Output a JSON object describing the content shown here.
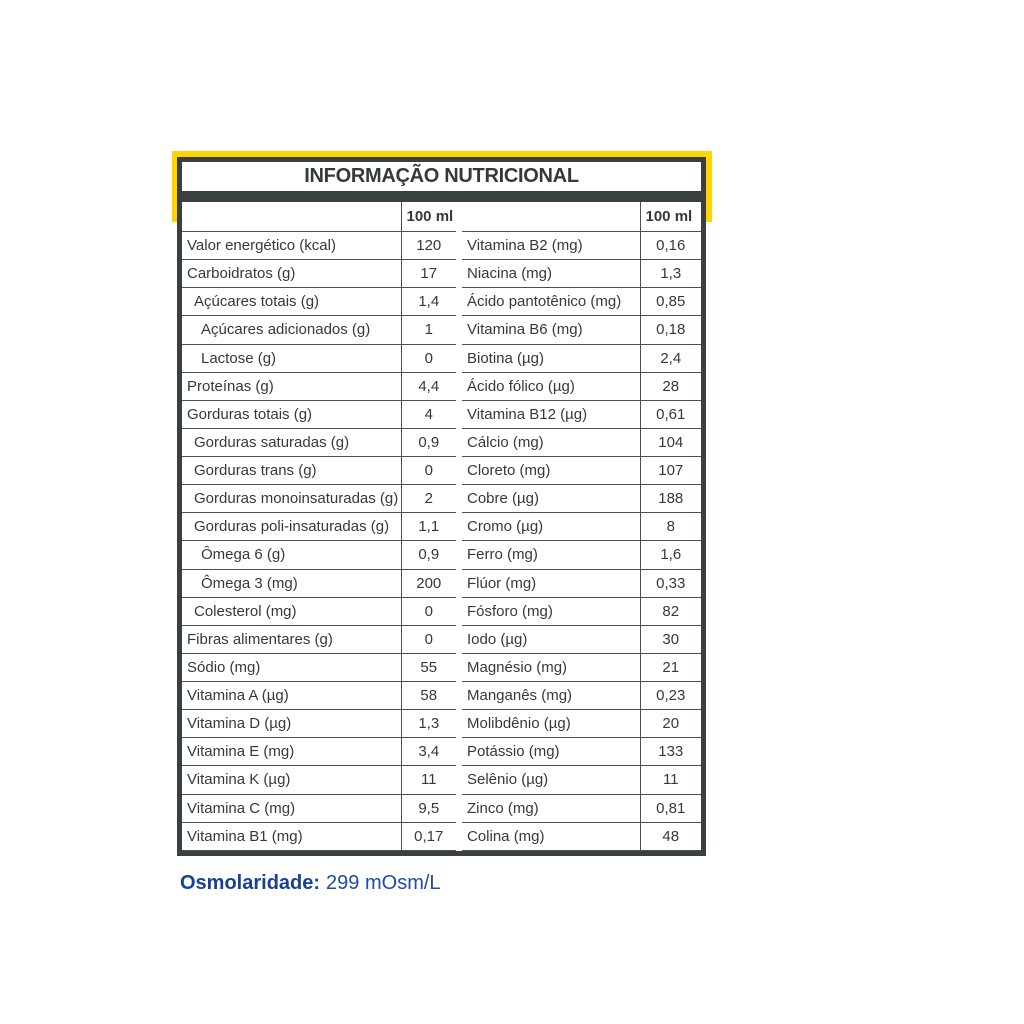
{
  "title": "INFORMAÇÃO NUTRICIONAL",
  "unit_header": "100 ml",
  "left_rows": [
    {
      "label": "Valor energético (kcal)",
      "value": "120",
      "indent": 0
    },
    {
      "label": "Carboidratos (g)",
      "value": "17",
      "indent": 0
    },
    {
      "label": "Açúcares totais (g)",
      "value": "1,4",
      "indent": 1
    },
    {
      "label": "Açúcares adicionados (g)",
      "value": "1",
      "indent": 2
    },
    {
      "label": "Lactose (g)",
      "value": "0",
      "indent": 2
    },
    {
      "label": "Proteínas (g)",
      "value": "4,4",
      "indent": 0
    },
    {
      "label": "Gorduras totais (g)",
      "value": "4",
      "indent": 0
    },
    {
      "label": "Gorduras saturadas (g)",
      "value": "0,9",
      "indent": 1
    },
    {
      "label": "Gorduras trans (g)",
      "value": "0",
      "indent": 1
    },
    {
      "label": "Gorduras monoinsaturadas (g)",
      "value": "2",
      "indent": 1
    },
    {
      "label": "Gorduras poli-insaturadas (g)",
      "value": "1,1",
      "indent": 1
    },
    {
      "label": "Ômega 6 (g)",
      "value": "0,9",
      "indent": 2
    },
    {
      "label": "Ômega 3 (mg)",
      "value": "200",
      "indent": 2
    },
    {
      "label": "Colesterol (mg)",
      "value": "0",
      "indent": 1
    },
    {
      "label": "Fibras alimentares (g)",
      "value": "0",
      "indent": 0
    },
    {
      "label": "Sódio (mg)",
      "value": "55",
      "indent": 0
    },
    {
      "label": "Vitamina A (µg)",
      "value": "58",
      "indent": 0
    },
    {
      "label": "Vitamina D (µg)",
      "value": "1,3",
      "indent": 0
    },
    {
      "label": "Vitamina E (mg)",
      "value": "3,4",
      "indent": 0
    },
    {
      "label": "Vitamina K (µg)",
      "value": "11",
      "indent": 0
    },
    {
      "label": "Vitamina C (mg)",
      "value": "9,5",
      "indent": 0
    },
    {
      "label": "Vitamina B1 (mg)",
      "value": "0,17",
      "indent": 0
    }
  ],
  "right_rows": [
    {
      "label": "Vitamina B2 (mg)",
      "value": "0,16",
      "indent": 0
    },
    {
      "label": "Niacina (mg)",
      "value": "1,3",
      "indent": 0
    },
    {
      "label": "Ácido pantotênico (mg)",
      "value": "0,85",
      "indent": 0
    },
    {
      "label": "Vitamina B6 (mg)",
      "value": "0,18",
      "indent": 0
    },
    {
      "label": "Biotina (µg)",
      "value": "2,4",
      "indent": 0
    },
    {
      "label": "Ácido fólico (µg)",
      "value": "28",
      "indent": 0
    },
    {
      "label": "Vitamina B12 (µg)",
      "value": "0,61",
      "indent": 0
    },
    {
      "label": "Cálcio (mg)",
      "value": "104",
      "indent": 0
    },
    {
      "label": "Cloreto (mg)",
      "value": "107",
      "indent": 0
    },
    {
      "label": "Cobre (µg)",
      "value": "188",
      "indent": 0
    },
    {
      "label": "Cromo (µg)",
      "value": "8",
      "indent": 0
    },
    {
      "label": "Ferro (mg)",
      "value": "1,6",
      "indent": 0
    },
    {
      "label": "Flúor (mg)",
      "value": "0,33",
      "indent": 0
    },
    {
      "label": "Fósforo (mg)",
      "value": "82",
      "indent": 0
    },
    {
      "label": "Iodo (µg)",
      "value": "30",
      "indent": 0
    },
    {
      "label": "Magnésio (mg)",
      "value": "21",
      "indent": 0
    },
    {
      "label": "Manganês (mg)",
      "value": "0,23",
      "indent": 0
    },
    {
      "label": "Molibdênio (µg)",
      "value": "20",
      "indent": 0
    },
    {
      "label": "Potássio (mg)",
      "value": "133",
      "indent": 0
    },
    {
      "label": "Selênio (µg)",
      "value": "11",
      "indent": 0
    },
    {
      "label": "Zinco (mg)",
      "value": "0,81",
      "indent": 0
    },
    {
      "label": "Colina (mg)",
      "value": "48",
      "indent": 0
    }
  ],
  "footer": {
    "label": "Osmolaridade:",
    "value": "299 mOsm/L"
  },
  "colors": {
    "accent_yellow": "#FFD400",
    "frame_dark": "#3A3F3F",
    "line_gray": "#4B5050",
    "footer_blue": "#1E4BA6"
  }
}
